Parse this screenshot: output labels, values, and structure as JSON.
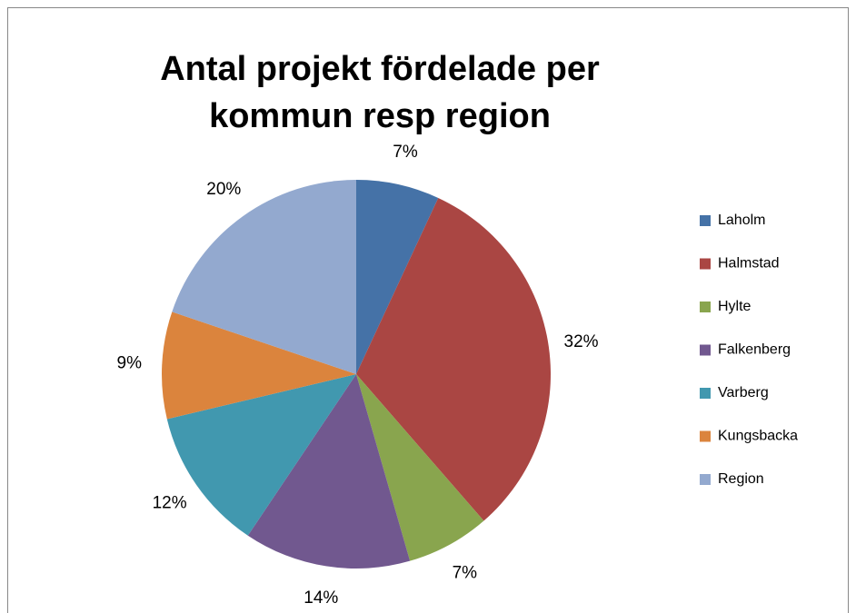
{
  "chart_data": {
    "type": "pie",
    "title": "Antal projekt fördelade per kommun resp region",
    "categories": [
      "Laholm",
      "Halmstad",
      "Hylte",
      "Falkenberg",
      "Varberg",
      "Kungsbacka",
      "Region"
    ],
    "values": [
      7,
      32,
      7,
      14,
      12,
      9,
      20
    ],
    "value_labels": [
      "7%",
      "32%",
      "7%",
      "14%",
      "12%",
      "9%",
      "20%"
    ],
    "colors": [
      "#4572a7",
      "#aa4643",
      "#89a54e",
      "#71588f",
      "#4198af",
      "#db843d",
      "#93a9cf"
    ],
    "legend": "right"
  }
}
